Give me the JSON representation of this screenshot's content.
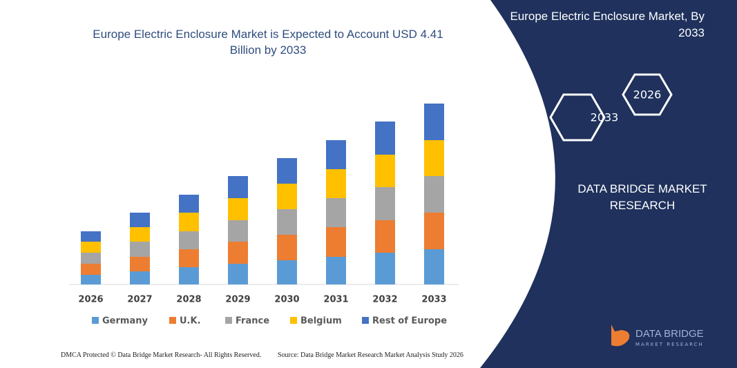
{
  "chart_data": {
    "type": "stacked-bar",
    "title": "Europe Electric Enclosure Market is Expected to Account USD 4.41 Billion by 2033",
    "categories": [
      "2026",
      "2027",
      "2028",
      "2029",
      "2030",
      "2031",
      "2032",
      "2033"
    ],
    "series": [
      {
        "name": "Germany",
        "color": "#5b9bd5",
        "values": [
          14,
          19,
          25,
          30,
          35,
          40,
          46,
          51
        ]
      },
      {
        "name": "U.K.",
        "color": "#ed7d31",
        "values": [
          16,
          21,
          26,
          32,
          37,
          43,
          47,
          53
        ]
      },
      {
        "name": "France",
        "color": "#a5a5a5",
        "values": [
          16,
          22,
          26,
          31,
          37,
          42,
          48,
          53
        ]
      },
      {
        "name": "Belgium",
        "color": "#ffc000",
        "values": [
          16,
          21,
          27,
          32,
          37,
          42,
          47,
          52
        ]
      },
      {
        "name": "Rest of Europe",
        "color": "#4472c4",
        "values": [
          15,
          21,
          26,
          32,
          37,
          42,
          48,
          53
        ]
      }
    ],
    "ylim": [
      0,
      262
    ]
  },
  "panel": {
    "heading": "Europe Electric Enclosure Market, By 2033",
    "hex_back": "2026",
    "hex_front": "2033",
    "company": "DATA BRIDGE MARKET RESEARCH",
    "logo_top": "DATA BRIDGE",
    "logo_bottom": "MARKET RESEARCH"
  },
  "footer": {
    "left": "DMCA Protected © Data Bridge Market Research- All Rights Reserved.",
    "right": "Source: Data Bridge Market Research Market Analysis Study 2026"
  }
}
